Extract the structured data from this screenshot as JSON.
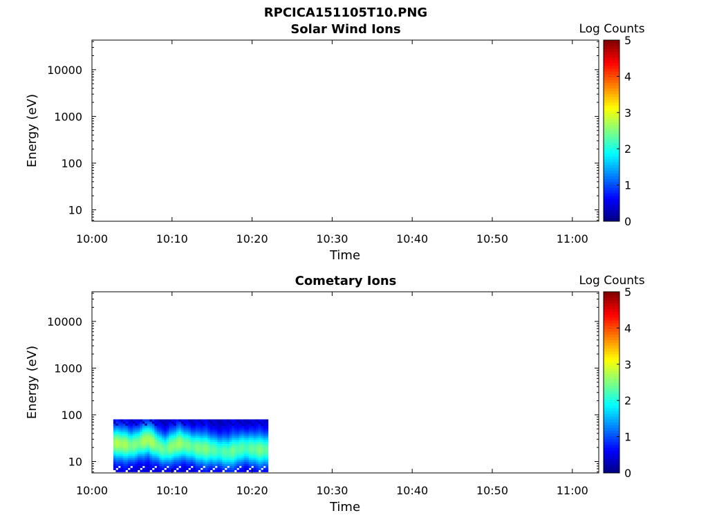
{
  "figure_title": "RPCICA151105T10.PNG",
  "chart_data": [
    {
      "type": "heatmap",
      "title": "Solar Wind Ions",
      "xlabel": "Time",
      "ylabel": "Energy (eV)",
      "x_ticks": [
        "10:00",
        "10:10",
        "10:20",
        "10:30",
        "10:40",
        "10:50",
        "11:00"
      ],
      "x_range_minutes": [
        0,
        63.3
      ],
      "y_scale": "log",
      "y_ticks": [
        "10",
        "100",
        "1000",
        "10000"
      ],
      "y_range": [
        5.7,
        43000
      ],
      "colorbar": {
        "label": "Log Counts",
        "ticks": [
          "0",
          "1",
          "2",
          "3",
          "4",
          "5"
        ],
        "range": [
          0,
          5
        ],
        "colormap": "jet"
      },
      "data": []
    },
    {
      "type": "heatmap",
      "title": "Cometary Ions",
      "xlabel": "Time",
      "ylabel": "Energy (eV)",
      "x_ticks": [
        "10:00",
        "10:10",
        "10:20",
        "10:30",
        "10:40",
        "10:50",
        "11:00"
      ],
      "x_range_minutes": [
        0,
        63.3
      ],
      "y_scale": "log",
      "y_ticks": [
        "10",
        "100",
        "1000",
        "10000"
      ],
      "y_range": [
        5.7,
        43000
      ],
      "colorbar": {
        "label": "Log Counts",
        "ticks": [
          "0",
          "1",
          "2",
          "3",
          "4",
          "5"
        ],
        "range": [
          0,
          5
        ],
        "colormap": "jet"
      },
      "data_extent": {
        "time_start": "10:02:40",
        "time_end": "10:22:00",
        "energy_max_eV": 80,
        "energy_min_eV": 6
      },
      "data_profile": [
        {
          "t": "10:03",
          "peak_eV": 25,
          "peak_log_counts": 2.3
        },
        {
          "t": "10:05",
          "peak_eV": 22,
          "peak_log_counts": 2.2
        },
        {
          "t": "10:07",
          "peak_eV": 30,
          "peak_log_counts": 2.3
        },
        {
          "t": "10:09",
          "peak_eV": 18,
          "peak_log_counts": 2.1
        },
        {
          "t": "10:11",
          "peak_eV": 25,
          "peak_log_counts": 2.2
        },
        {
          "t": "10:13",
          "peak_eV": 20,
          "peak_log_counts": 2.1
        },
        {
          "t": "10:15",
          "peak_eV": 18,
          "peak_log_counts": 2.0
        },
        {
          "t": "10:17",
          "peak_eV": 16,
          "peak_log_counts": 1.9
        },
        {
          "t": "10:19",
          "peak_eV": 20,
          "peak_log_counts": 2.0
        },
        {
          "t": "10:21",
          "peak_eV": 18,
          "peak_log_counts": 2.0
        }
      ]
    }
  ]
}
